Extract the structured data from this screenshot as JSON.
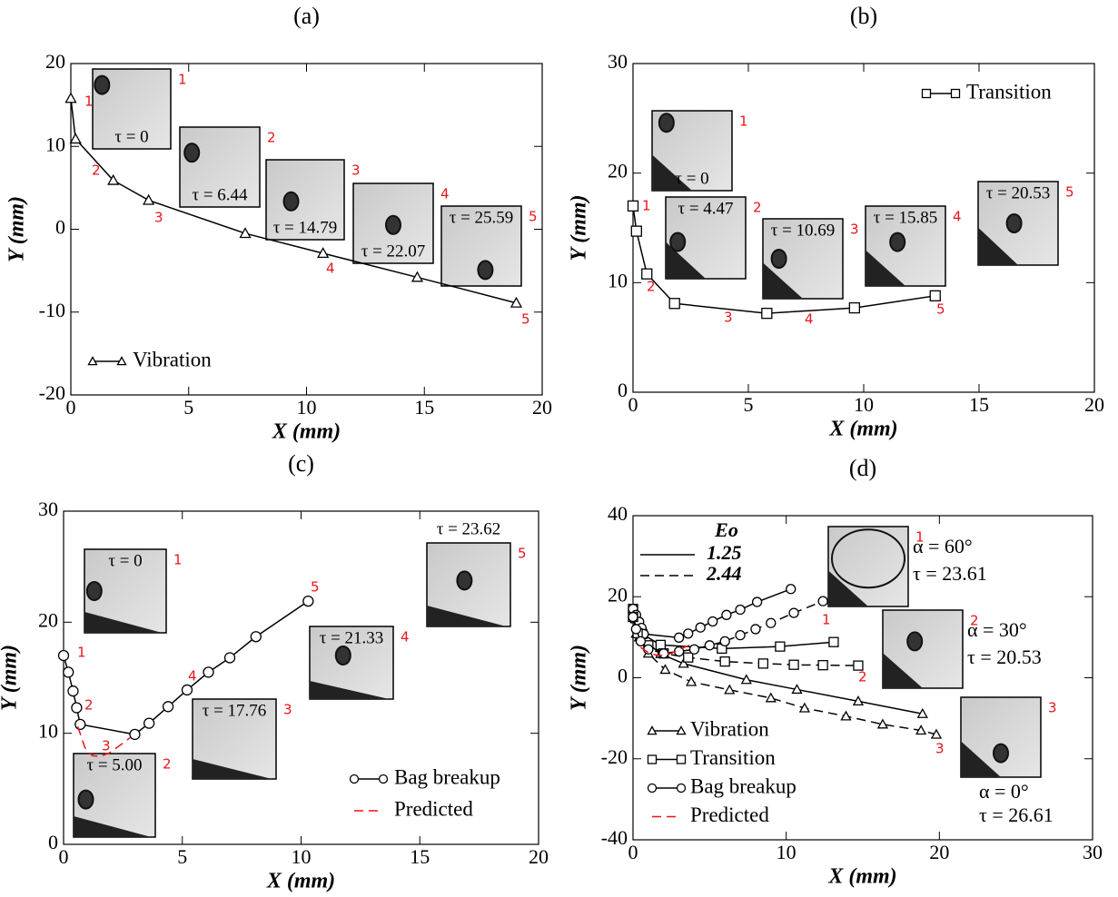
{
  "chart_data": [
    {
      "type": "line",
      "title": "(a)",
      "x_label": "X (mm)",
      "y_label": "Y (mm)",
      "xlim": [
        0,
        20
      ],
      "xticks": [
        0,
        5,
        10,
        15,
        20
      ],
      "ylim": [
        -20,
        20
      ],
      "yticks": [
        -20,
        -10,
        0,
        10,
        20
      ],
      "series": [
        {
          "name": "Vibration",
          "marker": "triangle",
          "color": "#000000",
          "dash": false,
          "x": [
            0,
            0.2,
            1.8,
            3.3,
            7.4,
            10.7,
            14.7,
            18.9
          ],
          "values": [
            15.8,
            10.9,
            5.9,
            3.5,
            -0.5,
            -2.9,
            -5.8,
            -8.9
          ]
        }
      ],
      "point_labels": [
        "1",
        "2",
        "3",
        "4",
        "5"
      ],
      "insets": [
        {
          "number": "1",
          "tau": "τ = 0"
        },
        {
          "number": "2",
          "tau": "τ = 6.44"
        },
        {
          "number": "3",
          "tau": "τ = 14.79"
        },
        {
          "number": "4",
          "tau": "τ = 22.07"
        },
        {
          "number": "5",
          "tau": "τ = 25.59"
        }
      ]
    },
    {
      "type": "line",
      "title": "(b)",
      "x_label": "X (mm)",
      "y_label": "Y (mm)",
      "xlim": [
        0,
        20
      ],
      "xticks": [
        0,
        5,
        10,
        15,
        20
      ],
      "ylim": [
        0,
        30
      ],
      "yticks": [
        0,
        10,
        20,
        30
      ],
      "series": [
        {
          "name": "Transition",
          "marker": "square",
          "color": "#000000",
          "dash": false,
          "x": [
            0,
            0.15,
            0.6,
            1.8,
            5.8,
            9.6,
            13.1
          ],
          "values": [
            17,
            14.7,
            10.8,
            8.1,
            7.2,
            7.7,
            8.8
          ]
        }
      ],
      "point_labels": [
        "1",
        "2",
        "3",
        "4",
        "5"
      ],
      "insets": [
        {
          "number": "1",
          "tau": "τ = 0"
        },
        {
          "number": "2",
          "tau": "τ = 4.47"
        },
        {
          "number": "3",
          "tau": "τ = 10.69"
        },
        {
          "number": "4",
          "tau": "τ = 15.85"
        },
        {
          "number": "5",
          "tau": "τ = 20.53"
        }
      ]
    },
    {
      "type": "line",
      "title": "(c)",
      "x_label": "X (mm)",
      "y_label": "Y (mm)",
      "xlim": [
        0,
        20
      ],
      "xticks": [
        0,
        5,
        10,
        15,
        20
      ],
      "ylim": [
        0,
        30
      ],
      "yticks": [
        0,
        10,
        20,
        30
      ],
      "series": [
        {
          "name": "Bag breakup",
          "marker": "circle",
          "color": "#000000",
          "dash": false,
          "x": [
            0,
            0.2,
            0.4,
            0.55,
            0.7,
            3,
            3.6,
            4.4,
            5.2,
            6.1,
            7,
            8.1,
            10.3
          ],
          "values": [
            17,
            15.5,
            13.8,
            12.3,
            10.8,
            9.9,
            10.9,
            12.4,
            13.9,
            15.5,
            16.8,
            18.7,
            21.9
          ]
        },
        {
          "name": "Predicted",
          "marker": "none",
          "color": "#e8141a",
          "dash": true,
          "x": [
            0.6,
            0.9,
            1.2,
            1.5,
            1.9,
            2.3,
            2.8
          ],
          "values": [
            10.6,
            8.7,
            8.0,
            7.9,
            8.2,
            8.8,
            9.6
          ]
        }
      ],
      "point_labels": [
        "1",
        "2",
        "3",
        "4",
        "5"
      ],
      "insets": [
        {
          "number": "1",
          "tau": "τ = 0"
        },
        {
          "number": "2",
          "tau": "τ = 5.00"
        },
        {
          "number": "3",
          "tau": "τ = 17.76"
        },
        {
          "number": "4",
          "tau": "τ = 21.33"
        },
        {
          "number": "5",
          "tau": "τ = 23.62"
        }
      ]
    },
    {
      "type": "line",
      "title": "(d)",
      "x_label": "X (mm)",
      "y_label": "Y (mm)",
      "xlim": [
        0,
        30
      ],
      "xticks": [
        0,
        10,
        20,
        30
      ],
      "ylim": [
        -40,
        40
      ],
      "yticks": [
        -40,
        -20,
        0,
        20,
        40
      ],
      "legend_entries": [
        "Vibration",
        "Transition",
        "Bag breakup",
        "Predicted"
      ],
      "legend_markers": [
        "triangle",
        "square",
        "circle",
        "none"
      ],
      "line_legend": {
        "title": "Eo",
        "entries": [
          "1.25",
          "2.44"
        ]
      },
      "series": [
        {
          "marker": "triangle",
          "color": "#000000",
          "dash": false,
          "x": [
            0,
            0.2,
            1.8,
            3.3,
            7.4,
            10.7,
            14.7,
            18.9
          ],
          "values": [
            15.8,
            10.9,
            5.9,
            3.5,
            -0.5,
            -2.9,
            -5.8,
            -8.9
          ]
        },
        {
          "marker": "square",
          "color": "#000000",
          "dash": false,
          "x": [
            0,
            0.15,
            0.6,
            1.8,
            5.8,
            9.6,
            13.1
          ],
          "values": [
            17,
            14.7,
            10.8,
            8.1,
            7.2,
            7.7,
            8.8
          ]
        },
        {
          "marker": "circle",
          "color": "#000000",
          "dash": false,
          "x": [
            0,
            0.2,
            0.4,
            0.55,
            0.7,
            3,
            3.6,
            4.4,
            5.2,
            6.1,
            7,
            8.1,
            10.3
          ],
          "values": [
            17,
            15.5,
            13.8,
            12.3,
            10.8,
            9.9,
            10.9,
            12.4,
            13.9,
            15.5,
            16.8,
            18.7,
            21.9
          ]
        },
        {
          "marker": "triangle",
          "color": "#000000",
          "dash": true,
          "x": [
            0,
            0.4,
            1,
            2.1,
            3.8,
            6.3,
            9,
            11.2,
            13.9,
            16.3,
            18.8,
            19.8
          ],
          "values": [
            15,
            10,
            6,
            2,
            -1,
            -3,
            -5,
            -7.5,
            -9.5,
            -11.5,
            -13,
            -14
          ]
        },
        {
          "marker": "square",
          "color": "#000000",
          "dash": true,
          "x": [
            0,
            0.3,
            1,
            2,
            3.6,
            6,
            8.5,
            10.5,
            12.4,
            14.7
          ],
          "values": [
            15,
            11,
            8,
            6,
            5,
            4,
            3.5,
            3.2,
            3.1,
            3
          ]
        },
        {
          "marker": "circle",
          "color": "#000000",
          "dash": true,
          "x": [
            0,
            0.2,
            0.5,
            1,
            2,
            3,
            4,
            5,
            6,
            7,
            8,
            9,
            10.5,
            12.4
          ],
          "values": [
            15,
            12,
            9,
            7,
            6,
            6.5,
            7,
            8,
            9,
            10.5,
            12,
            13.5,
            16,
            18.9
          ]
        },
        {
          "marker": "none",
          "color": "#e8141a",
          "dash": true,
          "x": [
            0.5,
            1,
            1.5,
            2,
            2.5,
            3,
            4
          ],
          "values": [
            7.5,
            6.2,
            5.6,
            5.5,
            6,
            7,
            8.5
          ]
        }
      ],
      "point_labels": [
        "1",
        "2",
        "3"
      ],
      "insets": [
        {
          "number": "1",
          "alpha": "α = 60°",
          "tau": "τ = 23.61"
        },
        {
          "number": "2",
          "alpha": "α = 30°",
          "tau": "τ = 20.53"
        },
        {
          "number": "3",
          "alpha": "α = 0°",
          "tau": "τ = 26.61"
        }
      ]
    }
  ]
}
